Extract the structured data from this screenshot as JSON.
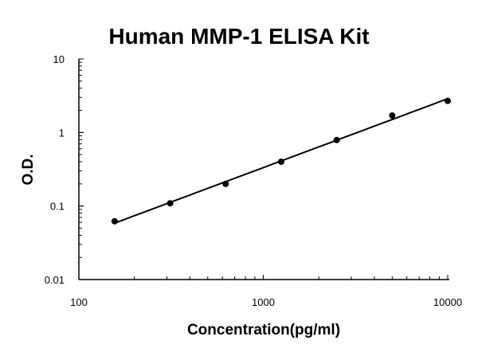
{
  "chart_data": {
    "type": "scatter",
    "title": "Human MMP-1 ELISA Kit",
    "xlabel": "Concentration(pg/ml)",
    "ylabel": "O.D.",
    "x_scale": "log",
    "y_scale": "log",
    "xlim": [
      100,
      10000
    ],
    "ylim": [
      0.01,
      10
    ],
    "x_ticks": [
      "100",
      "1000",
      "10000"
    ],
    "y_ticks": [
      "10",
      "1",
      "0.1",
      "0.01"
    ],
    "grid": false,
    "legend": "none",
    "trendline": true,
    "series": [
      {
        "x": [
          156.25,
          312.5,
          625,
          1250,
          2500,
          5000,
          10000
        ],
        "y": [
          0.062,
          0.109,
          0.2,
          0.4,
          0.79,
          1.7,
          2.69
        ]
      }
    ],
    "colors": {
      "marker": "#000000",
      "line": "#000000"
    }
  }
}
